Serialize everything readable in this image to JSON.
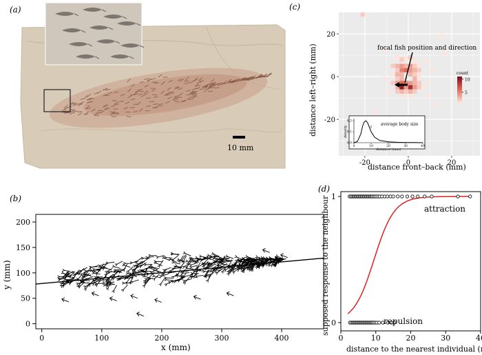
{
  "panel_labels": [
    "(a)",
    "(b)",
    "(c)",
    "(d)"
  ],
  "panel_a": {
    "scale_bar_label": "10 mm"
  },
  "chart_data": [
    {
      "panel": "(b)",
      "type": "scatter",
      "xlabel": "x (mm)",
      "ylabel": "y (mm)",
      "xlim": [
        -10,
        470
      ],
      "ylim": [
        -10,
        215
      ],
      "xticks": [
        0,
        100,
        200,
        300,
        400
      ],
      "yticks": [
        0,
        50,
        100,
        150,
        200
      ],
      "grid": false,
      "fit_line": {
        "x": [
          -10,
          470
        ],
        "y": [
          78,
          129
        ]
      },
      "shoal_summary": {
        "x_range": [
          40,
          410
        ],
        "y_range": [
          15,
          145
        ],
        "count_approx": 400
      }
    },
    {
      "panel": "(c)",
      "type": "heatmap",
      "xlabel": "distance front–back (mm)",
      "ylabel": "distance left–right (mm)",
      "xlim": [
        -32,
        33
      ],
      "ylim": [
        -37,
        30
      ],
      "xticks": [
        -20,
        0,
        20
      ],
      "yticks": [
        -20,
        0,
        20
      ],
      "annotation": "focal fish position and direction",
      "colorbar": {
        "title": "count",
        "ticks": [
          5,
          10
        ],
        "range": [
          1,
          11
        ]
      },
      "cells": [
        {
          "x": -5,
          "y": 9,
          "count": 1
        },
        {
          "x": -3,
          "y": 8,
          "count": 2
        },
        {
          "x": -1,
          "y": 8,
          "count": 1
        },
        {
          "x": 1,
          "y": 9,
          "count": 2
        },
        {
          "x": 3,
          "y": 7,
          "count": 1
        },
        {
          "x": -7,
          "y": 5,
          "count": 2
        },
        {
          "x": -5,
          "y": 5,
          "count": 3
        },
        {
          "x": -3,
          "y": 5,
          "count": 4
        },
        {
          "x": -1,
          "y": 5,
          "count": 3
        },
        {
          "x": 1,
          "y": 5,
          "count": 4
        },
        {
          "x": 3,
          "y": 5,
          "count": 2
        },
        {
          "x": 5,
          "y": 5,
          "count": 1
        },
        {
          "x": -5,
          "y": 3,
          "count": 2
        },
        {
          "x": -3,
          "y": 3,
          "count": 5
        },
        {
          "x": -1,
          "y": 3,
          "count": 6
        },
        {
          "x": 1,
          "y": 3,
          "count": 4
        },
        {
          "x": 3,
          "y": 3,
          "count": 3
        },
        {
          "x": 5,
          "y": 3,
          "count": 2
        },
        {
          "x": -7,
          "y": 1,
          "count": 1
        },
        {
          "x": -5,
          "y": 1,
          "count": 3
        },
        {
          "x": -3,
          "y": 1,
          "count": 3
        },
        {
          "x": 1,
          "y": 1,
          "count": 3
        },
        {
          "x": 3,
          "y": 1,
          "count": 2
        },
        {
          "x": 5,
          "y": 1,
          "count": 1
        },
        {
          "x": -5,
          "y": -1,
          "count": 2
        },
        {
          "x": -3,
          "y": -1,
          "count": 3
        },
        {
          "x": 3,
          "y": -1,
          "count": 3
        },
        {
          "x": 5,
          "y": -1,
          "count": 1
        },
        {
          "x": -7,
          "y": -3,
          "count": 2
        },
        {
          "x": -5,
          "y": -3,
          "count": 4
        },
        {
          "x": -3,
          "y": -3,
          "count": 6
        },
        {
          "x": -1,
          "y": -3,
          "count": 5
        },
        {
          "x": 1,
          "y": -3,
          "count": 4
        },
        {
          "x": 3,
          "y": -3,
          "count": 3
        },
        {
          "x": 5,
          "y": -3,
          "count": 2
        },
        {
          "x": -5,
          "y": -5,
          "count": 3
        },
        {
          "x": -3,
          "y": -5,
          "count": 10
        },
        {
          "x": -1,
          "y": -5,
          "count": 4
        },
        {
          "x": 1,
          "y": -5,
          "count": 9
        },
        {
          "x": 3,
          "y": -5,
          "count": 4
        },
        {
          "x": 5,
          "y": -5,
          "count": 2
        },
        {
          "x": 7,
          "y": -5,
          "count": 1
        },
        {
          "x": -5,
          "y": -7,
          "count": 2
        },
        {
          "x": -3,
          "y": -7,
          "count": 3
        },
        {
          "x": -1,
          "y": -7,
          "count": 2
        },
        {
          "x": 1,
          "y": -7,
          "count": 3
        },
        {
          "x": 3,
          "y": -7,
          "count": 2
        },
        {
          "x": -3,
          "y": -9,
          "count": 1
        },
        {
          "x": 1,
          "y": -9,
          "count": 1
        },
        {
          "x": 9,
          "y": 7,
          "count": 1
        },
        {
          "x": 11,
          "y": 3,
          "count": 1
        },
        {
          "x": -11,
          "y": -1,
          "count": 1
        },
        {
          "x": 9,
          "y": -3,
          "count": 1
        },
        {
          "x": -9,
          "y": -7,
          "count": 1
        },
        {
          "x": 9,
          "y": -9,
          "count": 1
        },
        {
          "x": -21,
          "y": 29,
          "count": 2
        },
        {
          "x": 15,
          "y": 19,
          "count": 1
        },
        {
          "x": -11,
          "y": 13,
          "count": 1
        },
        {
          "x": 13,
          "y": -13,
          "count": 1
        },
        {
          "x": -15,
          "y": -17,
          "count": 1
        },
        {
          "x": 17,
          "y": 11,
          "count": 1
        }
      ],
      "inset": {
        "type": "line",
        "title": "average body size",
        "xlabel": "distance (mm)",
        "ylabel": "density",
        "xlim": [
          0,
          40
        ],
        "ylim": [
          0,
          0.22
        ],
        "xticks": [
          0,
          10,
          20,
          30,
          40
        ],
        "yticks": [
          0.0,
          0.1,
          0.2
        ],
        "body_size_marker": 10,
        "x": [
          0,
          2,
          4,
          5,
          6,
          7,
          8,
          10,
          12,
          15,
          20,
          25,
          30,
          35,
          40
        ],
        "y": [
          0,
          0.01,
          0.08,
          0.15,
          0.19,
          0.2,
          0.18,
          0.1,
          0.05,
          0.02,
          0.008,
          0.004,
          0.002,
          0.001,
          0.0
        ]
      }
    },
    {
      "panel": "(d)",
      "type": "scatter",
      "xlabel": "distance to the nearest individual (mm)",
      "ylabel": "supposed response to the neighbour",
      "xlim": [
        0,
        40
      ],
      "ylim": [
        -0.05,
        1.05
      ],
      "xticks": [
        0,
        10,
        20,
        30,
        40
      ],
      "yticks": [
        0,
        1
      ],
      "annotations": [
        "attraction",
        "repulsion"
      ],
      "curve": {
        "type": "logistic",
        "midpoint": 9.5,
        "scale": 2.9,
        "x_range": [
          2,
          37
        ]
      },
      "points_y1": [
        2.5,
        2.9,
        3.3,
        3.6,
        3.9,
        4.2,
        4.5,
        4.8,
        5.1,
        5.4,
        5.7,
        6.0,
        6.3,
        6.6,
        6.9,
        7.2,
        7.5,
        7.8,
        8.1,
        8.4,
        8.7,
        9.0,
        9.4,
        9.8,
        10.2,
        10.7,
        11.2,
        11.8,
        12.5,
        13.3,
        14.2,
        15.0,
        16.3,
        17.5,
        19.0,
        20.5,
        22.0,
        24.0,
        26.0,
        33.5,
        37.0
      ],
      "points_y0": [
        2.6,
        3.0,
        3.4,
        3.7,
        4.0,
        4.3,
        4.6,
        4.9,
        5.2,
        5.5,
        5.8,
        6.1,
        6.4,
        6.7,
        7.0,
        7.3,
        7.6,
        7.9,
        8.2,
        8.5,
        8.8,
        9.1,
        9.5,
        9.9,
        10.4,
        11.0,
        12.0,
        13.5,
        14.5,
        15.3
      ]
    }
  ]
}
